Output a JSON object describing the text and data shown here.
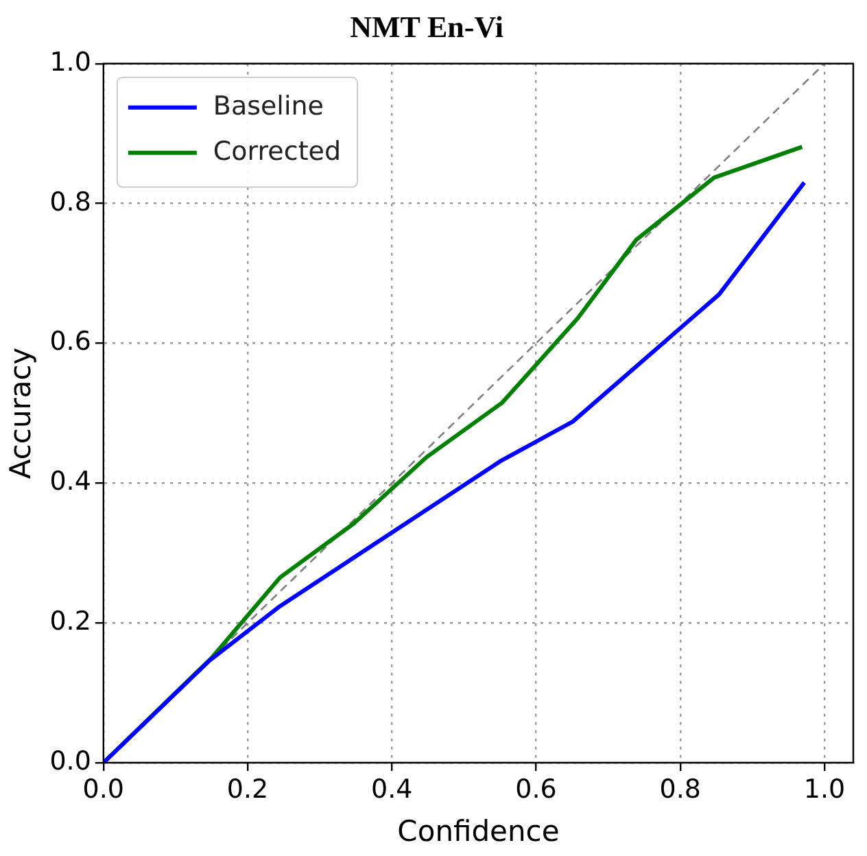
{
  "chart_data": {
    "type": "line",
    "title": "NMT En-Vi",
    "xlabel": "Confidence",
    "ylabel": "Accuracy",
    "xlim": [
      0,
      1.04
    ],
    "ylim": [
      0,
      1
    ],
    "xticks": [
      {
        "value": 0,
        "label": "0.0"
      },
      0.2,
      0.4,
      0.6,
      0.8,
      {
        "value": 1,
        "label": "1.0"
      }
    ],
    "yticks": [
      {
        "value": 0,
        "label": "0.0"
      },
      0.2,
      0.4,
      0.6,
      0.8,
      {
        "value": 1,
        "label": "1.0"
      }
    ],
    "grid": true,
    "legend": "top left",
    "marker": "none",
    "series": [
      {
        "name": "Baseline",
        "color": "#0000ff",
        "x": [
          0,
          0.147,
          0.245,
          0.55,
          0.651,
          0.854,
          0.972
        ],
        "values": [
          0,
          0.146,
          0.224,
          0.431,
          0.488,
          0.67,
          0.83
        ]
      },
      {
        "name": "Corrected",
        "color": "#008000",
        "x": [
          0,
          0.15,
          0.245,
          0.347,
          0.448,
          0.553,
          0.658,
          0.739,
          0.847,
          0.969
        ],
        "values": [
          0,
          0.15,
          0.265,
          0.342,
          0.437,
          0.515,
          0.636,
          0.748,
          0.837,
          0.881
        ]
      },
      {
        "color": "#808080",
        "line_style": "dashed",
        "x": [
          0,
          1
        ],
        "values": [
          0,
          1
        ]
      }
    ]
  }
}
